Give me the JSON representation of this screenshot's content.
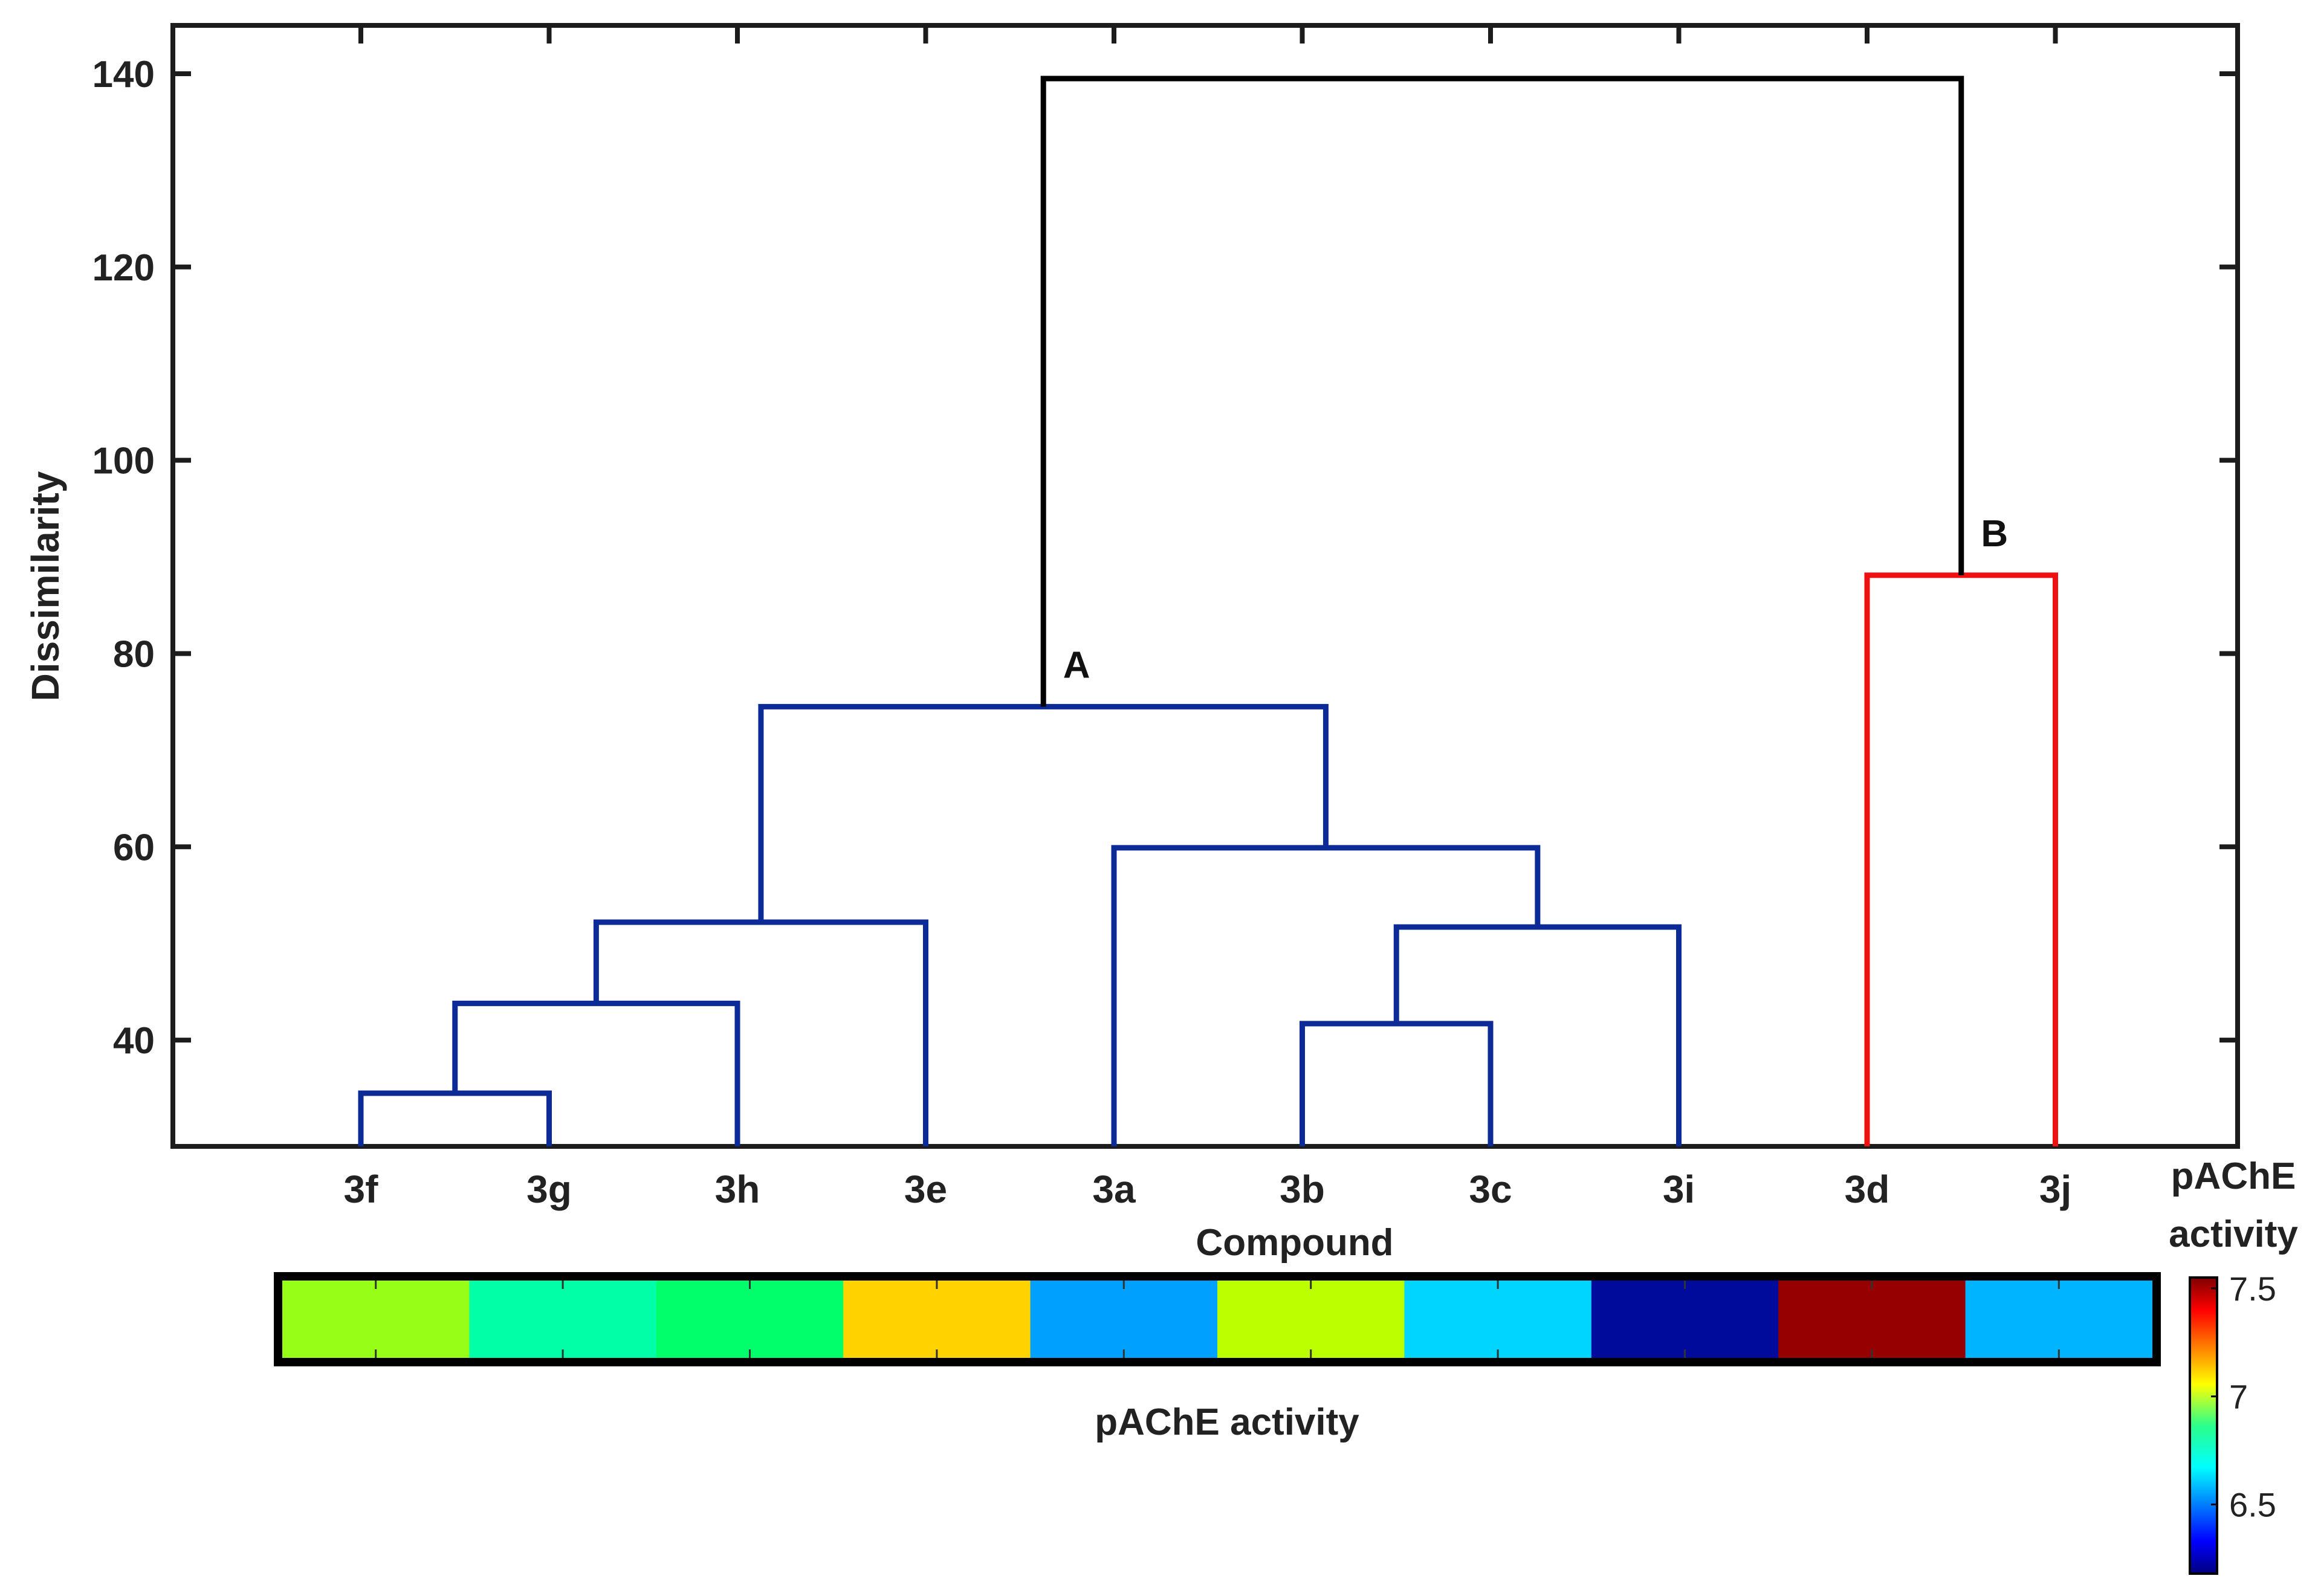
{
  "chart_data": {
    "type": "dendrogram",
    "ylabel": "Dissimilarity",
    "xlabel": "Compound",
    "ylim": [
      29,
      145
    ],
    "yticks": [
      40,
      60,
      80,
      100,
      120,
      140
    ],
    "leaves": [
      "3f",
      "3g",
      "3h",
      "3e",
      "3a",
      "3b",
      "3c",
      "3i",
      "3d",
      "3j"
    ],
    "merges": [
      {
        "left": "3f",
        "right": "3g",
        "height": 34.5,
        "cluster": "A"
      },
      {
        "left": "3f+3g",
        "right": "3h",
        "height": 43.8,
        "cluster": "A"
      },
      {
        "left": "3f+3g+3h",
        "right": "3e",
        "height": 52.2,
        "cluster": "A"
      },
      {
        "left": "3b",
        "right": "3c",
        "height": 41.7,
        "cluster": "A"
      },
      {
        "left": "3b+3c",
        "right": "3i",
        "height": 51.7,
        "cluster": "A"
      },
      {
        "left": "3a",
        "right": "3b+3c+3i",
        "height": 59.9,
        "cluster": "A"
      },
      {
        "left": "3f+3g+3h+3e",
        "right": "3a+3b+3c+3i",
        "height": 74.5,
        "cluster": "A"
      },
      {
        "left": "3d",
        "right": "3j",
        "height": 88.1,
        "cluster": "B"
      },
      {
        "left": "A",
        "right": "B",
        "height": 139.5,
        "cluster": "root"
      }
    ],
    "cluster_labels": [
      {
        "text": "A",
        "height": 74.5
      },
      {
        "text": "B",
        "height": 88.1
      }
    ],
    "cluster_colors": {
      "A": "#0c2b96",
      "B": "#ee1111",
      "root": "#000000"
    },
    "heatmap": {
      "label": "pAChE activity",
      "values": [
        6.95,
        6.72,
        6.85,
        7.08,
        6.46,
        7.0,
        6.58,
        6.12,
        7.5,
        6.52
      ],
      "colors": [
        "#97ff17",
        "#00ffa6",
        "#00ff6a",
        "#ffd200",
        "#00a0ff",
        "#bcff00",
        "#00d5ff",
        "#000a9b",
        "#970000",
        "#00b4ff"
      ]
    },
    "colorbar": {
      "title_line1": "pAChE",
      "title_line2": "activity",
      "min": 6.18,
      "max": 7.55,
      "tick_values": [
        6.5,
        7,
        7.5
      ],
      "tick_labels": [
        "6.5",
        "7",
        "7.5"
      ]
    }
  }
}
